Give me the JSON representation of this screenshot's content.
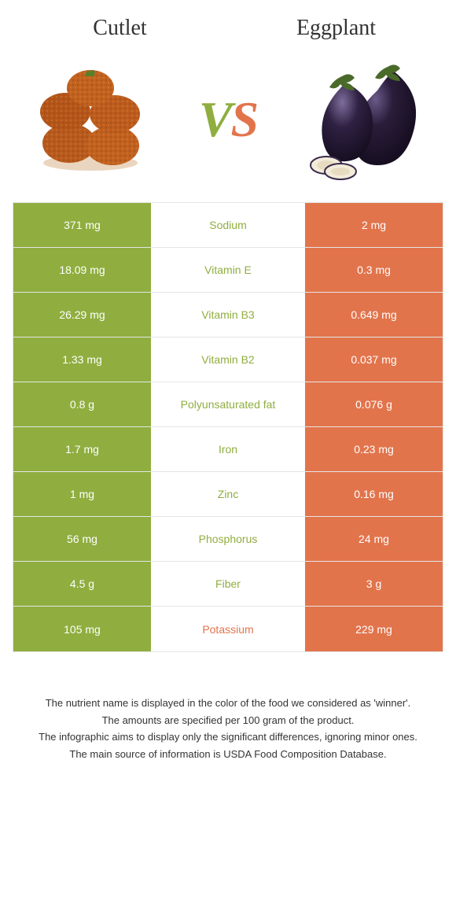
{
  "header": {
    "left_title": "Cutlet",
    "right_title": "Eggplant",
    "vs_v": "V",
    "vs_s": "S"
  },
  "colors": {
    "green": "#8fae3f",
    "orange": "#e2744c",
    "white": "#ffffff"
  },
  "table": {
    "rows": [
      {
        "left": "371 mg",
        "mid": "Sodium",
        "right": "2 mg",
        "winner": "left"
      },
      {
        "left": "18.09 mg",
        "mid": "Vitamin E",
        "right": "0.3 mg",
        "winner": "left"
      },
      {
        "left": "26.29 mg",
        "mid": "Vitamin B3",
        "right": "0.649 mg",
        "winner": "left"
      },
      {
        "left": "1.33 mg",
        "mid": "Vitamin B2",
        "right": "0.037 mg",
        "winner": "left"
      },
      {
        "left": "0.8 g",
        "mid": "Polyunsaturated fat",
        "right": "0.076 g",
        "winner": "left"
      },
      {
        "left": "1.7 mg",
        "mid": "Iron",
        "right": "0.23 mg",
        "winner": "left"
      },
      {
        "left": "1 mg",
        "mid": "Zinc",
        "right": "0.16 mg",
        "winner": "left"
      },
      {
        "left": "56 mg",
        "mid": "Phosphorus",
        "right": "24 mg",
        "winner": "left"
      },
      {
        "left": "4.5 g",
        "mid": "Fiber",
        "right": "3 g",
        "winner": "left"
      },
      {
        "left": "105 mg",
        "mid": "Potassium",
        "right": "229 mg",
        "winner": "right"
      }
    ]
  },
  "footer": {
    "line1": "The nutrient name is displayed in the color of the food we considered as 'winner'.",
    "line2": "The amounts are specified per 100 gram of the product.",
    "line3": "The infographic aims to display only the significant differences, ignoring minor ones.",
    "line4": "The main source of information is USDA Food Composition Database."
  }
}
